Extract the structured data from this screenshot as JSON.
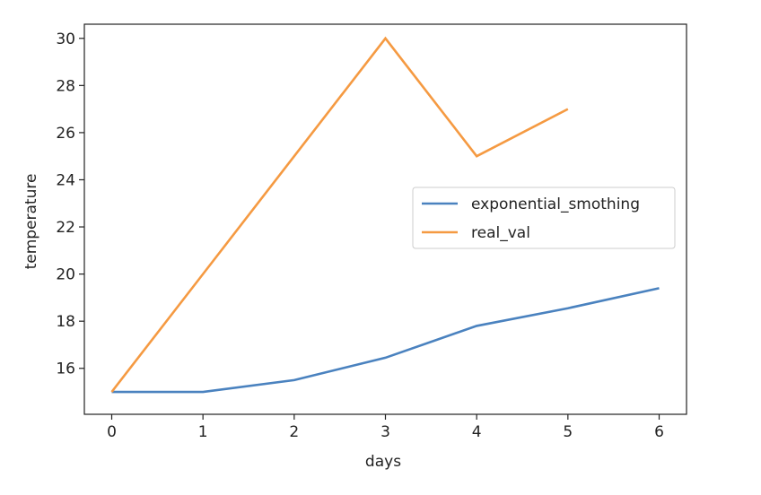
{
  "chart_data": {
    "type": "line",
    "title": "",
    "xlabel": "days",
    "ylabel": "temperature",
    "xlim": [
      -0.3,
      6.3
    ],
    "ylim": [
      14.05,
      30.6
    ],
    "xticks": [
      0,
      1,
      2,
      3,
      4,
      5,
      6
    ],
    "yticks": [
      16,
      18,
      20,
      22,
      24,
      26,
      28,
      30
    ],
    "grid": false,
    "legend_position": "center-right",
    "series": [
      {
        "name": "exponential_smothing",
        "color": "#4a82bf",
        "x": [
          0,
          1,
          2,
          3,
          4,
          5,
          6
        ],
        "y": [
          15.0,
          15.0,
          15.5,
          16.45,
          17.8,
          18.55,
          19.4
        ]
      },
      {
        "name": "real_val",
        "color": "#f59a42",
        "x": [
          0,
          1,
          2,
          3,
          4,
          5
        ],
        "y": [
          15,
          20,
          25,
          30,
          25,
          27
        ]
      }
    ]
  }
}
